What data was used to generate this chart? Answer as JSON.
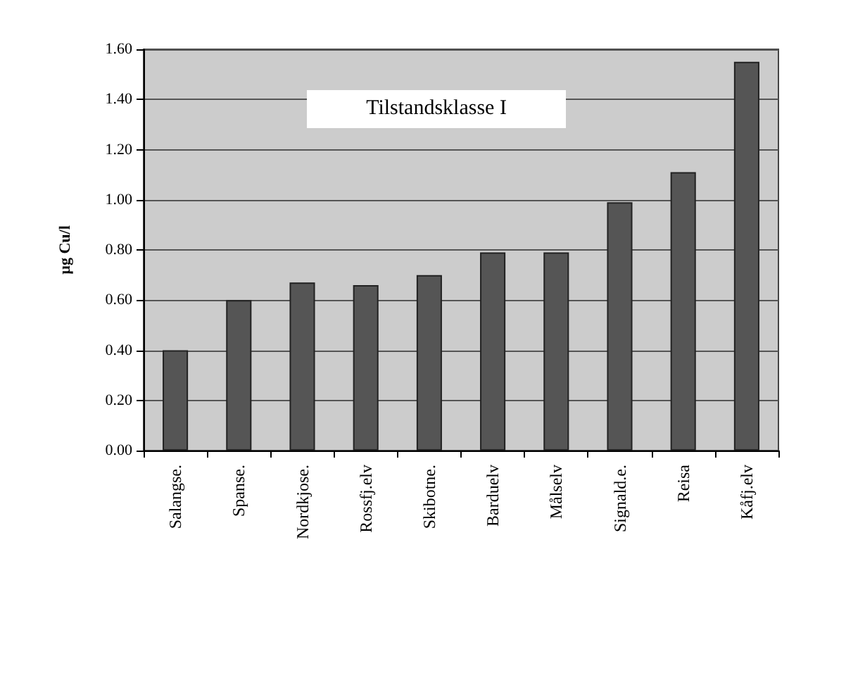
{
  "chart_data": {
    "type": "bar",
    "title": "Tilstandsklasse I",
    "ylabel": "µg Cu/l",
    "categories": [
      "Salangse.",
      "Spanse.",
      "Nordkjose.",
      "Rossfj.elv",
      "Skibotne.",
      "Barduelv",
      "Målselv",
      "Signald.e.",
      "Reisa",
      "Kåfj.elv"
    ],
    "values": [
      0.4,
      0.6,
      0.67,
      0.66,
      0.7,
      0.79,
      0.79,
      0.99,
      1.11,
      1.55
    ],
    "color": "#555555",
    "ylim": [
      0,
      1.6
    ],
    "yticks": [
      {
        "value": 0,
        "label": "0.00"
      },
      {
        "value": 0.2,
        "label": "0.20"
      },
      {
        "value": 0.4,
        "label": "0.40"
      },
      {
        "value": 0.6,
        "label": "0.60"
      },
      {
        "value": 0.8,
        "label": "0.80"
      },
      {
        "value": 1.0,
        "label": "1.00"
      },
      {
        "value": 1.2,
        "label": "1.20"
      },
      {
        "value": 1.4,
        "label": "1.40"
      },
      {
        "value": 1.6,
        "label": "1.60"
      }
    ],
    "grid": "y"
  }
}
